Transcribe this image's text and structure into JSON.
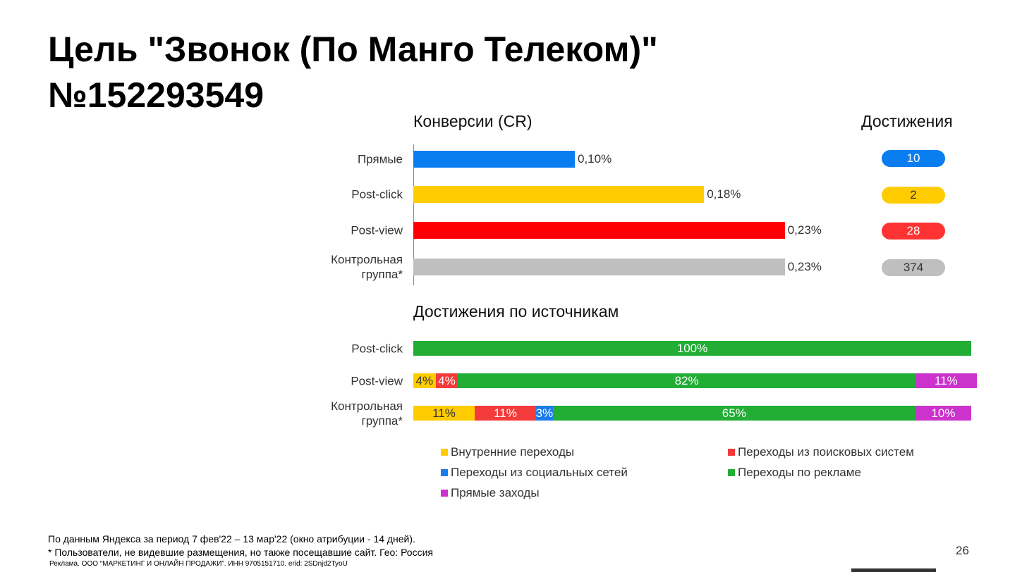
{
  "title_lines": [
    "Цель \"Звонок (По Манго Телеком)\"",
    "№152293549"
  ],
  "chart_data": [
    {
      "type": "hbar",
      "title": "Конверсии (CR)",
      "categories": [
        "Прямые",
        "Post-click",
        "Post-view",
        "Контрольная группа*"
      ],
      "values": [
        0.1,
        0.18,
        0.23,
        0.23
      ],
      "value_labels": [
        "0,10%",
        "0,18%",
        "0,23%",
        "0,23%"
      ],
      "colors": [
        "#0a7ef0",
        "#ffcc00",
        "#ff0000",
        "#bfbfbf"
      ]
    },
    {
      "type": "stacked_hbar",
      "title": "Достижения по источникам",
      "categories": [
        "Post-click",
        "Post-view",
        "Контрольная группа*"
      ],
      "series": [
        {
          "name": "Внутренние переходы",
          "color": "#ffcc00",
          "values": [
            null,
            4,
            11
          ],
          "value_labels": [
            null,
            "4%",
            "11%"
          ]
        },
        {
          "name": "Переходы из поисковых систем",
          "color": "#f43b3b",
          "values": [
            null,
            4,
            11
          ],
          "value_labels": [
            null,
            "4%",
            "11%"
          ]
        },
        {
          "name": "Переходы из социальных сетей",
          "color": "#1a7bea",
          "values": [
            null,
            null,
            3
          ],
          "value_labels": [
            null,
            null,
            "3%"
          ]
        },
        {
          "name": "Переходы по рекламе",
          "color": "#22ad34",
          "values": [
            100,
            82,
            65
          ],
          "value_labels": [
            "100%",
            "82%",
            "65%"
          ]
        },
        {
          "name": "Прямые заходы",
          "color": "#cc33cc",
          "values": [
            null,
            11,
            10
          ],
          "value_labels": [
            null,
            "11%",
            "10%"
          ]
        }
      ]
    }
  ],
  "achievements": {
    "title": "Достижения",
    "values": [
      10,
      2,
      28,
      374
    ],
    "colors": [
      "#0a7ef0",
      "#ffcc00",
      "#ff3333",
      "#bfbfbf"
    ]
  },
  "footer": {
    "notes": [
      "По данным Яндекса за период 7 фев'22 – 13 мар'22 (окно атрибуции - 14 дней).",
      "* Пользователи, не видевшие размещения, но также посещавшие сайт. Гео: Россия"
    ],
    "ad": "Реклама. ООО “МАРКЕТИНГ И ОНЛАЙН ПРОДАЖИ”. ИНН 9705151710. erid: 2SDnjd2TyoU",
    "page": "26"
  }
}
